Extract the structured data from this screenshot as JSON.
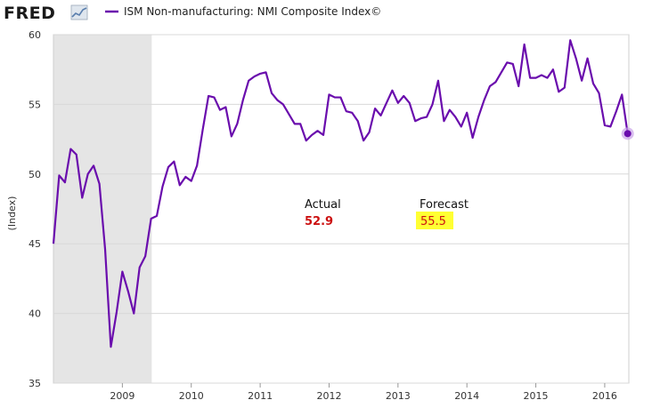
{
  "brand": {
    "logo_text": "FRED"
  },
  "chart_data": {
    "type": "line",
    "title": "",
    "xlabel": "",
    "ylabel": "(Index)",
    "xlim": [
      2008.0,
      2016.35
    ],
    "ylim": [
      35,
      60
    ],
    "y_ticks": [
      35,
      40,
      45,
      50,
      55,
      60
    ],
    "x_ticks": [
      2009,
      2010,
      2011,
      2012,
      2013,
      2014,
      2015,
      2016
    ],
    "x_tick_labels": [
      "2009",
      "2010",
      "2011",
      "2012",
      "2013",
      "2014",
      "2015",
      "2016"
    ],
    "grid": "horizontal",
    "legend_position": "top-left",
    "recession_band": [
      2008.0,
      2009.42
    ],
    "series": [
      {
        "name": "ISM Non-manufacturing: NMI Composite Index©",
        "color": "#6a0dad",
        "x": [
          2008.0,
          2008.083,
          2008.167,
          2008.25,
          2008.333,
          2008.417,
          2008.5,
          2008.583,
          2008.667,
          2008.75,
          2008.833,
          2008.917,
          2009.0,
          2009.083,
          2009.167,
          2009.25,
          2009.333,
          2009.417,
          2009.5,
          2009.583,
          2009.667,
          2009.75,
          2009.833,
          2009.917,
          2010.0,
          2010.083,
          2010.167,
          2010.25,
          2010.333,
          2010.417,
          2010.5,
          2010.583,
          2010.667,
          2010.75,
          2010.833,
          2010.917,
          2011.0,
          2011.083,
          2011.167,
          2011.25,
          2011.333,
          2011.417,
          2011.5,
          2011.583,
          2011.667,
          2011.75,
          2011.833,
          2011.917,
          2012.0,
          2012.083,
          2012.167,
          2012.25,
          2012.333,
          2012.417,
          2012.5,
          2012.583,
          2012.667,
          2012.75,
          2012.833,
          2012.917,
          2013.0,
          2013.083,
          2013.167,
          2013.25,
          2013.333,
          2013.417,
          2013.5,
          2013.583,
          2013.667,
          2013.75,
          2013.833,
          2013.917,
          2014.0,
          2014.083,
          2014.167,
          2014.25,
          2014.333,
          2014.417,
          2014.5,
          2014.583,
          2014.667,
          2014.75,
          2014.833,
          2014.917,
          2015.0,
          2015.083,
          2015.167,
          2015.25,
          2015.333,
          2015.417,
          2015.5,
          2015.583,
          2015.667,
          2015.75,
          2015.833,
          2015.917,
          2016.0,
          2016.083,
          2016.167,
          2016.25,
          2016.333
        ],
        "values": [
          45.0,
          49.9,
          49.4,
          51.8,
          51.4,
          48.3,
          50.0,
          50.6,
          49.3,
          44.6,
          37.6,
          40.1,
          43.0,
          41.6,
          40.0,
          43.3,
          44.1,
          46.8,
          47.0,
          49.1,
          50.5,
          50.9,
          49.2,
          49.8,
          49.5,
          50.6,
          53.2,
          55.6,
          55.5,
          54.6,
          54.8,
          52.7,
          53.6,
          55.3,
          56.7,
          57.0,
          57.2,
          57.3,
          55.8,
          55.3,
          55.0,
          54.3,
          53.6,
          53.6,
          52.4,
          52.8,
          53.1,
          52.8,
          55.7,
          55.5,
          55.5,
          54.5,
          54.4,
          53.8,
          52.4,
          53.0,
          54.7,
          54.2,
          55.1,
          56.0,
          55.1,
          55.6,
          55.1,
          53.8,
          54.0,
          54.1,
          55.0,
          56.7,
          53.8,
          54.6,
          54.1,
          53.4,
          54.4,
          52.6,
          54.1,
          55.3,
          56.3,
          56.6,
          57.3,
          58.0,
          57.9,
          56.3,
          59.3,
          56.9,
          56.9,
          57.1,
          56.9,
          57.5,
          55.9,
          56.2,
          59.6,
          58.3,
          56.7,
          58.3,
          56.5,
          55.8,
          53.5,
          53.4,
          54.5,
          55.7,
          52.9
        ]
      }
    ],
    "annotations": [
      {
        "label": "Actual",
        "value": "52.9",
        "color": "#cc1111"
      },
      {
        "label": "Forecast",
        "value": "55.5",
        "color": "#cc1111",
        "highlight": "#ffff33"
      }
    ]
  }
}
